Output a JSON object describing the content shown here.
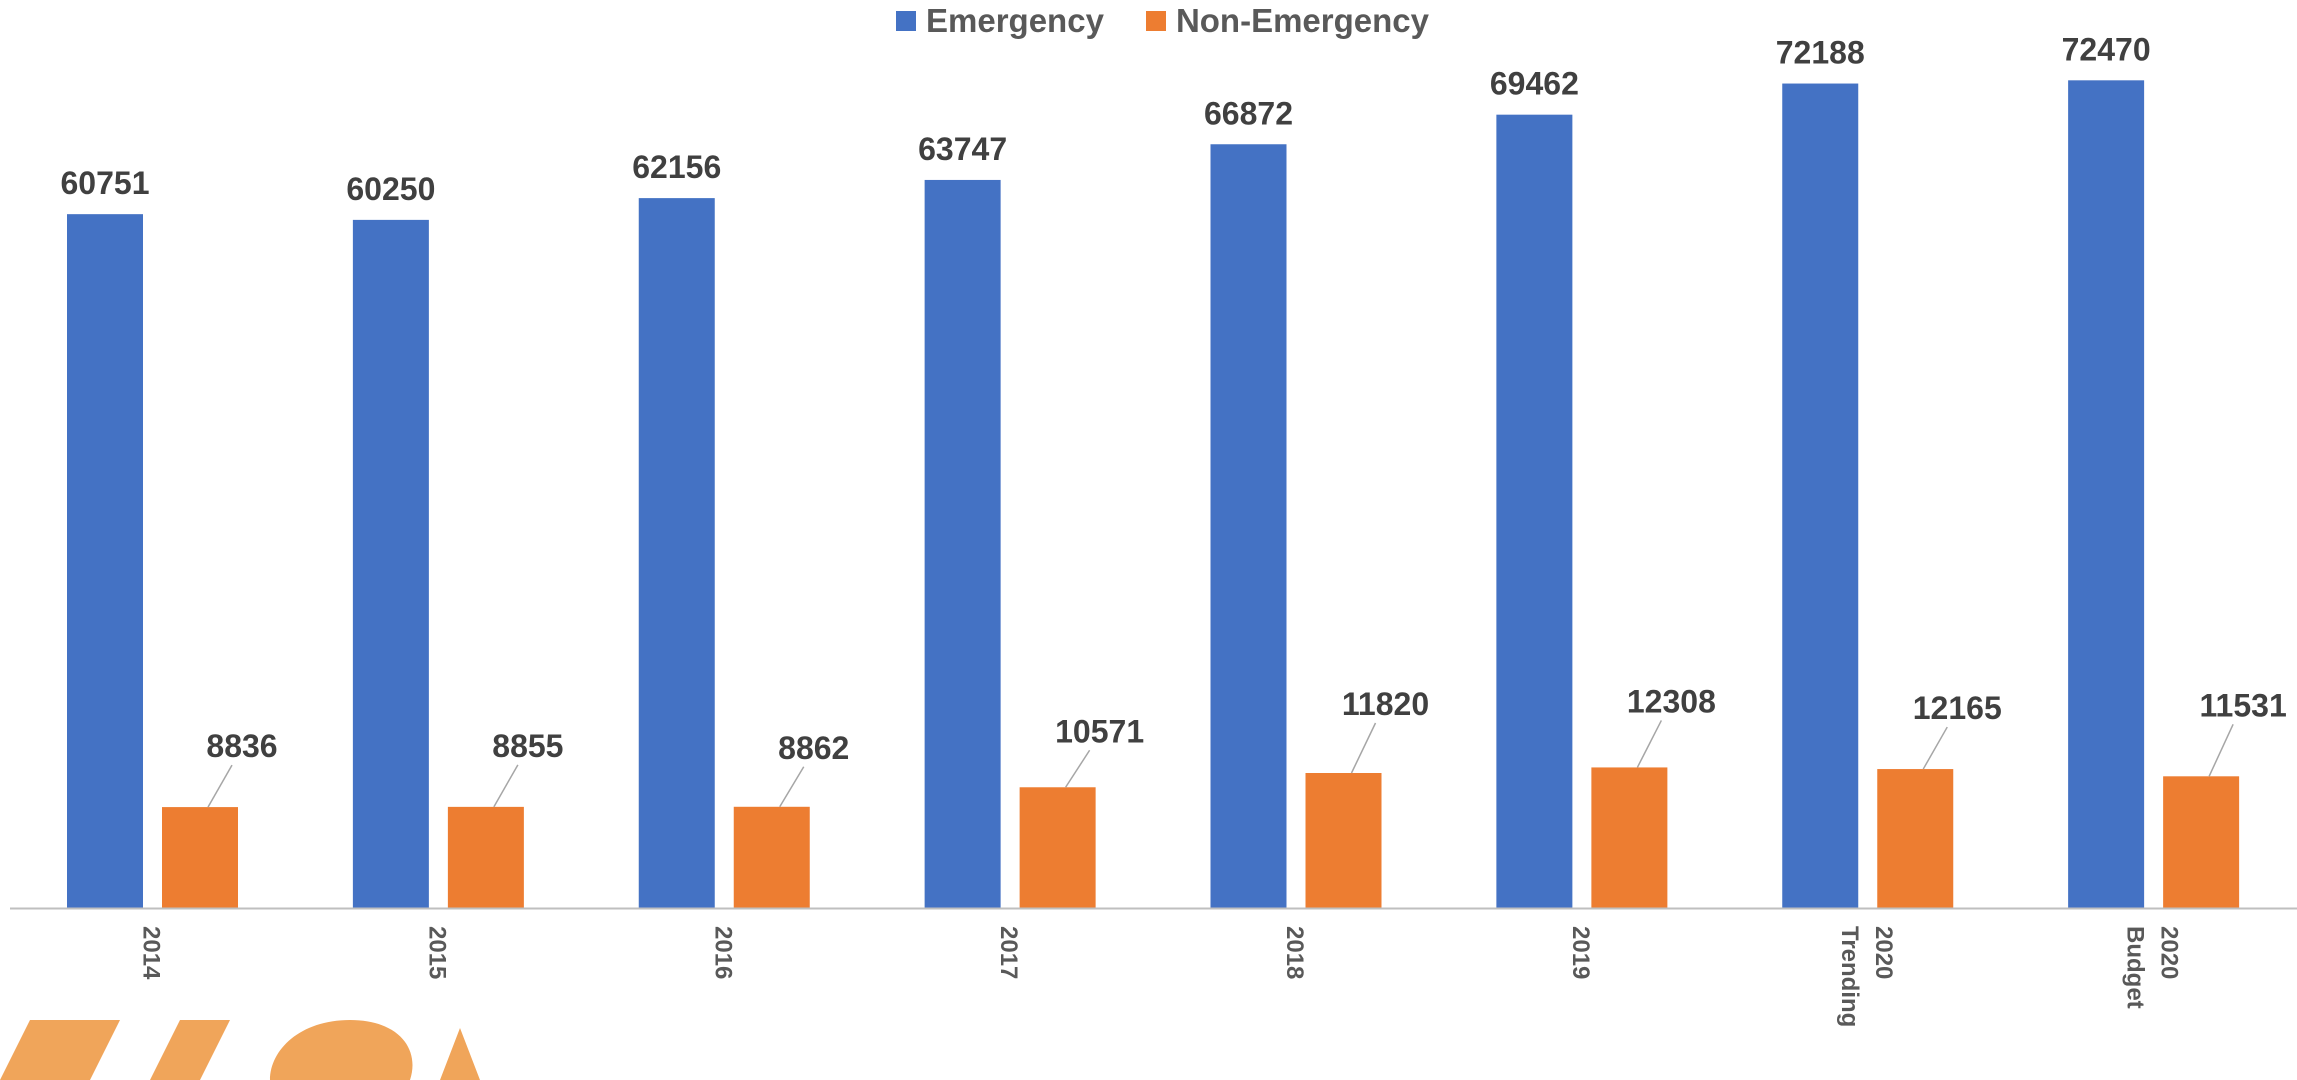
{
  "colors": {
    "emergency": "#4472C4",
    "non_emergency": "#ED7D31",
    "axis": "#bfbfbf",
    "label": "#404040",
    "tick": "#595959",
    "leader": "#a6a6a6",
    "watermark": "#F0A55A"
  },
  "legend": [
    {
      "label": "Emergency",
      "color": "#4472C4"
    },
    {
      "label": "Non-Emergency",
      "color": "#ED7D31"
    }
  ],
  "chart_data": {
    "type": "bar",
    "categories": [
      [
        "2014"
      ],
      [
        "2015"
      ],
      [
        "2016"
      ],
      [
        "2017"
      ],
      [
        "2018"
      ],
      [
        "2019"
      ],
      [
        "2020",
        "Trending"
      ],
      [
        "2020",
        "Budget"
      ]
    ],
    "series": [
      {
        "name": "Emergency",
        "values": [
          60751,
          60250,
          62156,
          63747,
          66872,
          69462,
          72188,
          72470
        ]
      },
      {
        "name": "Non-Emergency",
        "values": [
          8836,
          8855,
          8862,
          10571,
          11820,
          12308,
          12165,
          11531
        ]
      }
    ],
    "ylim": [
      0,
      80000
    ],
    "grid": false,
    "legend_position": "top",
    "data_labels": true,
    "xlabel": "",
    "ylabel": ""
  }
}
